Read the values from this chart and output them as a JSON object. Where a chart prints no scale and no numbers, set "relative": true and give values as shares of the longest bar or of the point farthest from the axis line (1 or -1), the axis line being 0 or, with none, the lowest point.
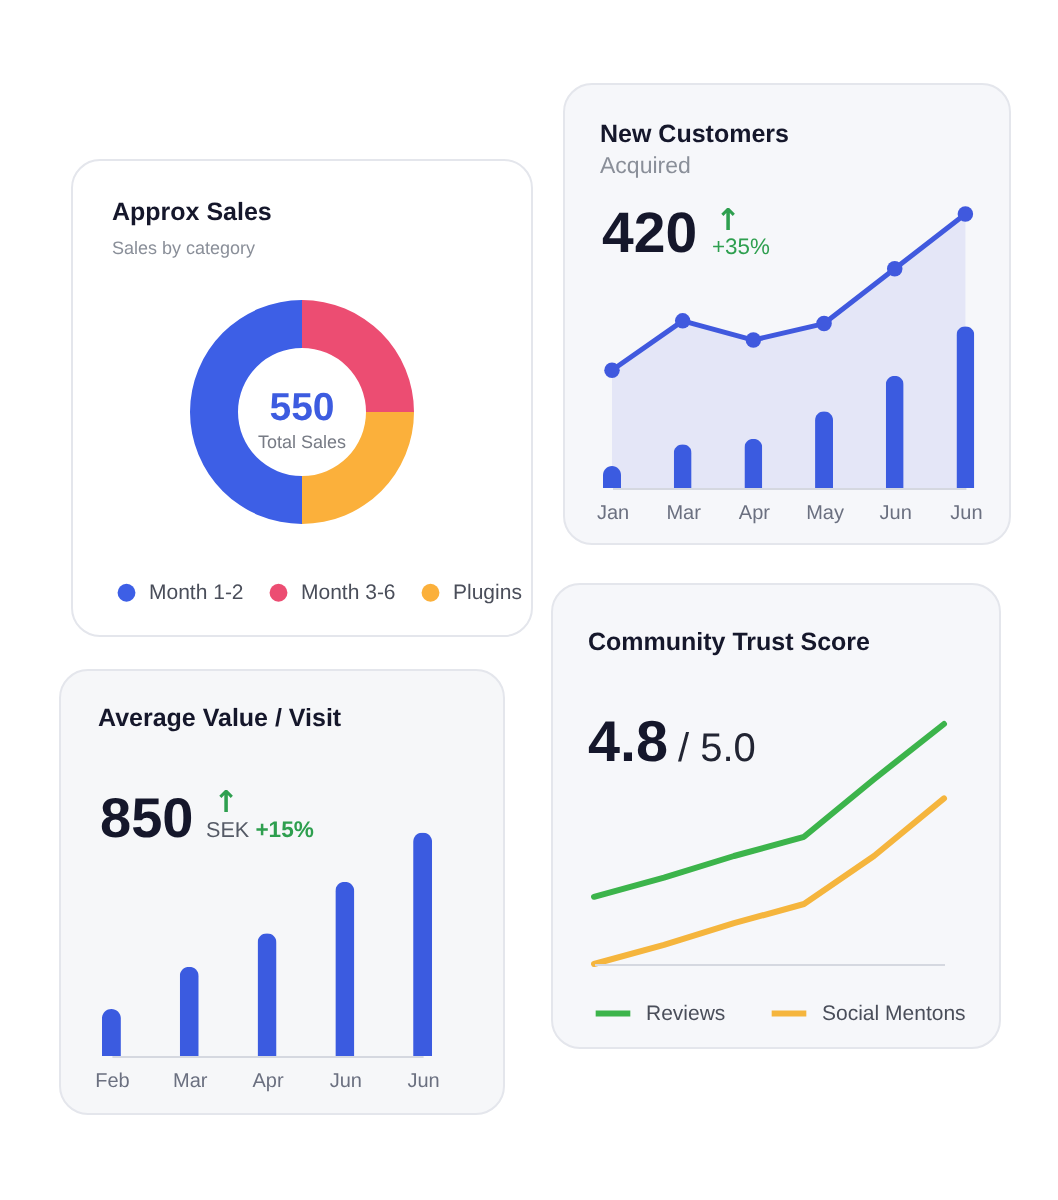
{
  "chart_data": [
    {
      "type": "donut",
      "title": "Approx Sales",
      "subtitle": "Sales by category",
      "categories": [
        "Month 1-2",
        "Month 3-6",
        "Plugins"
      ],
      "values": [
        50,
        25,
        25
      ],
      "colors": [
        "#3d5fe6",
        "#ec4d72",
        "#fbb03b"
      ],
      "annotations": [
        "550",
        "Total Sales"
      ],
      "legend": "bottom"
    },
    {
      "type": "bar",
      "title": "Average Value / Visit",
      "categories": [
        "Feb",
        "Mar",
        "Apr",
        "Jun",
        "Jun"
      ],
      "values": [
        0.21,
        0.4,
        0.55,
        0.78,
        1
      ],
      "color": "#3b5be0",
      "relative": true,
      "annotations": [
        "850",
        "SEK",
        "↑",
        "+15%"
      ]
    },
    {
      "type": "bar",
      "title": "New Customers",
      "subtitle": "Acquired",
      "categories": [
        "Jan",
        "Mar",
        "Apr",
        "May",
        "Jun",
        "Jun"
      ],
      "relative": true,
      "marker": "circle",
      "series": [
        {
          "type": "area",
          "color": "#4059de",
          "values": [
            0.43,
            0.61,
            0.54,
            0.6,
            0.8,
            1
          ]
        },
        {
          "type": "bar",
          "color": "#3b5be0",
          "values": [
            0.08,
            0.16,
            0.18,
            0.28,
            0.41,
            0.59
          ]
        }
      ],
      "annotations": [
        "420",
        "↑",
        "+35%"
      ]
    },
    {
      "type": "line",
      "title": "Community Trust Score",
      "categories": [
        null,
        null,
        null,
        null,
        null,
        null
      ],
      "relative": true,
      "series": [
        {
          "name": "Reviews",
          "color": "#3cb44b",
          "values": [
            0.28,
            0.36,
            0.45,
            0.53,
            0.77,
            1
          ]
        },
        {
          "name": "Social Mentons",
          "color": "#f5b53d",
          "values": [
            0,
            0.08,
            0.17,
            0.25,
            0.45,
            0.69
          ]
        }
      ],
      "legend": "bottom",
      "annotations": [
        "4.8",
        "/ 5.0"
      ]
    }
  ]
}
